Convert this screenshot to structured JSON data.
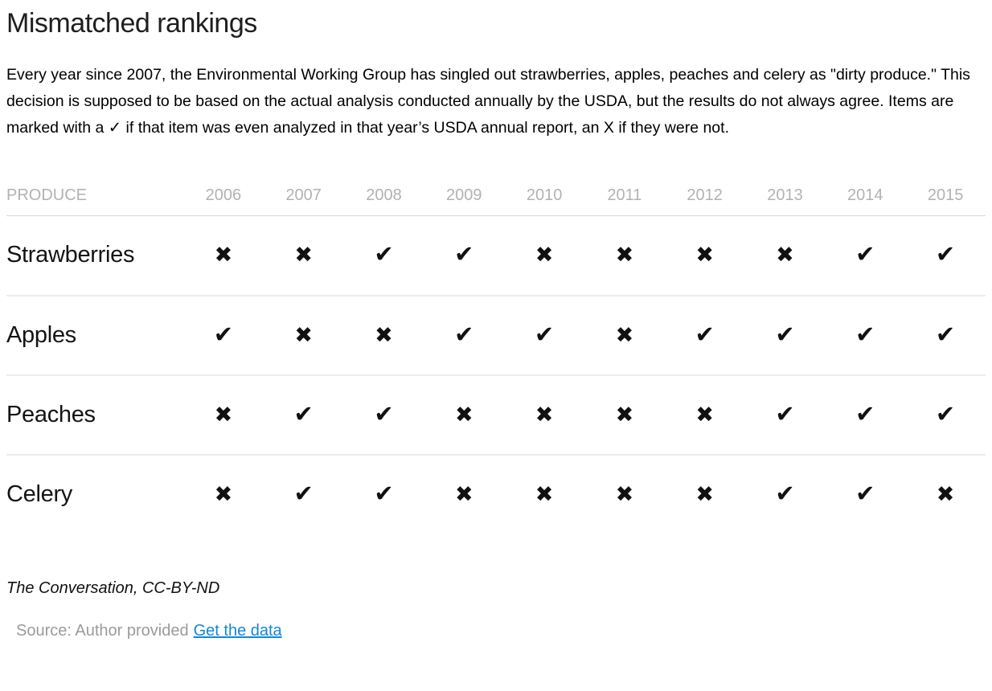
{
  "page": {
    "title": "Mismatched rankings",
    "description": "Every year since 2007, the Environmental Working Group has singled out strawberries, apples, peaches and celery as \"dirty produce.\" This decision is supposed to be based on the actual analysis conducted annually by the USDA, but the results do not always agree. Items are marked with a ✓ if that item was even analyzed in that year’s USDA annual report, an X if they were not.",
    "credit": "The Conversation, CC-BY-ND",
    "source_label": "Source: Author provided",
    "source_link": "Get the data"
  },
  "table": {
    "produce_header": "PRODUCE",
    "years": [
      "2006",
      "2007",
      "2008",
      "2009",
      "2010",
      "2011",
      "2012",
      "2013",
      "2014",
      "2015"
    ],
    "glyphs": {
      "check": "✔",
      "x": "✖"
    },
    "rows": [
      {
        "label": "Strawberries",
        "marks": [
          "x",
          "x",
          "check",
          "check",
          "x",
          "x",
          "x",
          "x",
          "check",
          "check"
        ]
      },
      {
        "label": "Apples",
        "marks": [
          "check",
          "x",
          "x",
          "check",
          "check",
          "x",
          "check",
          "check",
          "check",
          "check"
        ]
      },
      {
        "label": "Peaches",
        "marks": [
          "x",
          "check",
          "check",
          "x",
          "x",
          "x",
          "x",
          "check",
          "check",
          "check"
        ]
      },
      {
        "label": "Celery",
        "marks": [
          "x",
          "check",
          "check",
          "x",
          "x",
          "x",
          "x",
          "check",
          "check",
          "x"
        ]
      }
    ]
  },
  "colors": {
    "link_blue": "#1287d8",
    "mark_black": "#111111",
    "header_gray": "#b0b2b4",
    "muted_gray": "#9b9b9b"
  },
  "chart_data": {
    "type": "table",
    "title": "Mismatched rankings",
    "columns": [
      "PRODUCE",
      "2006",
      "2007",
      "2008",
      "2009",
      "2010",
      "2011",
      "2012",
      "2013",
      "2014",
      "2015"
    ],
    "rows": [
      [
        "Strawberries",
        "✗",
        "✗",
        "✓",
        "✓",
        "✗",
        "✗",
        "✗",
        "✗",
        "✓",
        "✓"
      ],
      [
        "Apples",
        "✓",
        "✗",
        "✗",
        "✓",
        "✓",
        "✗",
        "✓",
        "✓",
        "✓",
        "✓"
      ],
      [
        "Peaches",
        "✗",
        "✓",
        "✓",
        "✗",
        "✗",
        "✗",
        "✗",
        "✓",
        "✓",
        "✓"
      ],
      [
        "Celery",
        "✗",
        "✓",
        "✓",
        "✗",
        "✗",
        "✗",
        "✗",
        "✓",
        "✓",
        "✗"
      ]
    ],
    "legend": "✓ = item analyzed in that year's USDA annual report; ✗ = not analyzed",
    "source": "Author provided",
    "credit": "The Conversation, CC-BY-ND"
  }
}
